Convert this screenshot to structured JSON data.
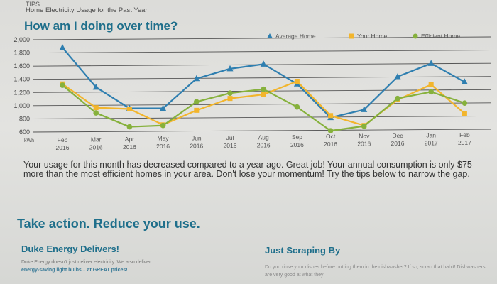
{
  "header": {
    "top_caption": "TIPS",
    "subtitle": "Home Electricity Usage for the Past Year",
    "title": "How am I doing over time?"
  },
  "chart_data": {
    "type": "line",
    "xlabel": "",
    "ylabel": "",
    "y_unit_label": "kWh",
    "ylim": [
      600,
      2000
    ],
    "yticks": [
      600,
      800,
      1000,
      1200,
      1400,
      1600,
      1800,
      2000
    ],
    "ytick_labels": [
      "600",
      "800",
      "1,000",
      "1,200",
      "1,400",
      "1,600",
      "1,800",
      "2,000"
    ],
    "categories": [
      "Feb 2016",
      "Mar 2016",
      "Apr 2016",
      "May 2016",
      "Jun 2016",
      "Jul 2016",
      "Aug 2016",
      "Sep 2016",
      "Oct 2016",
      "Nov 2016",
      "Dec 2016",
      "Jan 2017",
      "Feb 2017"
    ],
    "category_lines": [
      [
        "Feb",
        "2016"
      ],
      [
        "Mar",
        "2016"
      ],
      [
        "Apr",
        "2016"
      ],
      [
        "May",
        "2016"
      ],
      [
        "Jun",
        "2016"
      ],
      [
        "Jul",
        "2016"
      ],
      [
        "Aug",
        "2016"
      ],
      [
        "Sep",
        "2016"
      ],
      [
        "Oct",
        "2016"
      ],
      [
        "Nov",
        "2016"
      ],
      [
        "Dec",
        "2016"
      ],
      [
        "Jan",
        "2017"
      ],
      [
        "Feb",
        "2017"
      ]
    ],
    "series": [
      {
        "name": "Average Home",
        "color": "#2f7fb0",
        "marker": "triangle",
        "values": [
          1880,
          1280,
          960,
          960,
          1410,
          1560,
          1630,
          1330,
          820,
          940,
          1440,
          1640,
          1360
        ]
      },
      {
        "name": "Your Home",
        "color": "#f2b52c",
        "marker": "square",
        "values": [
          1330,
          970,
          950,
          710,
          930,
          1110,
          1170,
          1370,
          850,
          700,
          1090,
          1320,
          880
        ]
      },
      {
        "name": "Efficient Home",
        "color": "#86b13c",
        "marker": "circle",
        "values": [
          1310,
          890,
          680,
          700,
          1060,
          1190,
          1250,
          980,
          620,
          690,
          1110,
          1210,
          1040
        ]
      }
    ],
    "grid": true,
    "legend": "top-right"
  },
  "summary": "Your usage for this month has decreased compared to a year ago. Great job! Your annual consumption is only $75 more than the most efficient homes in your area. Don't lose your momentum! Try the tips below to narrow the gap.",
  "action": {
    "title": "Take action. Reduce your use.",
    "col1": {
      "heading": "Duke Energy Delivers!",
      "text_plain": "Duke Energy doesn't just deliver electricity. We also deliver",
      "text_bold": "energy-saving light bulbs... at GREAT prices!"
    },
    "col2": {
      "heading": "Just Scraping By",
      "text": "Do you rinse your dishes before putting them in the dishwasher? If so, scrap that habit! Dishwashers are very good at what they"
    }
  }
}
